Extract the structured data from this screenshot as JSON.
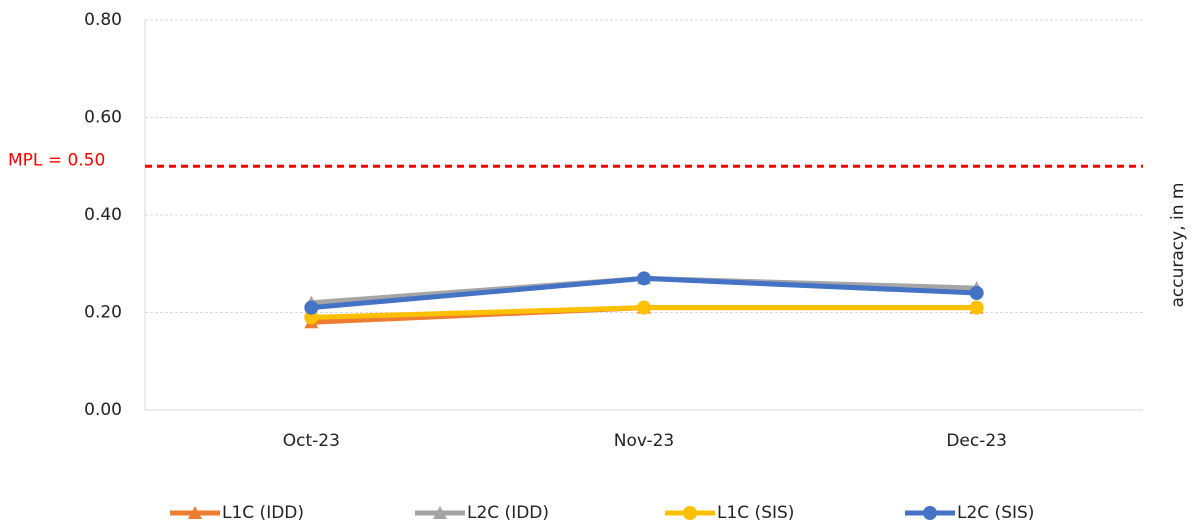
{
  "chart_data": {
    "type": "line",
    "categories": [
      "Oct-23",
      "Nov-23",
      "Dec-23"
    ],
    "series": [
      {
        "name": "L1C (IDD)",
        "color": "#ed7d31",
        "marker": "triangle",
        "values": [
          0.18,
          0.21,
          0.21
        ]
      },
      {
        "name": "L2C (IDD)",
        "color": "#a5a5a5",
        "marker": "triangle",
        "values": [
          0.22,
          0.27,
          0.25
        ]
      },
      {
        "name": "L1C (SIS)",
        "color": "#ffc000",
        "marker": "circle",
        "values": [
          0.19,
          0.21,
          0.21
        ]
      },
      {
        "name": "L2C (SIS)",
        "color": "#4472c4",
        "marker": "circle",
        "values": [
          0.21,
          0.27,
          0.24
        ]
      }
    ],
    "ylim": [
      0,
      0.8
    ],
    "yticks": [
      {
        "value": 0,
        "label": "0.00"
      },
      {
        "value": 0.2,
        "label": "0.20"
      },
      {
        "value": 0.4,
        "label": "0.40"
      },
      {
        "value": 0.6,
        "label": "0.60"
      },
      {
        "value": 0.8,
        "label": "0.80"
      }
    ],
    "y_label": "accuracy, in m",
    "grid": true,
    "threshold": {
      "value": 0.5,
      "label": "MPL = 0.50",
      "color": "#ff0000"
    },
    "legend": "bottom"
  }
}
